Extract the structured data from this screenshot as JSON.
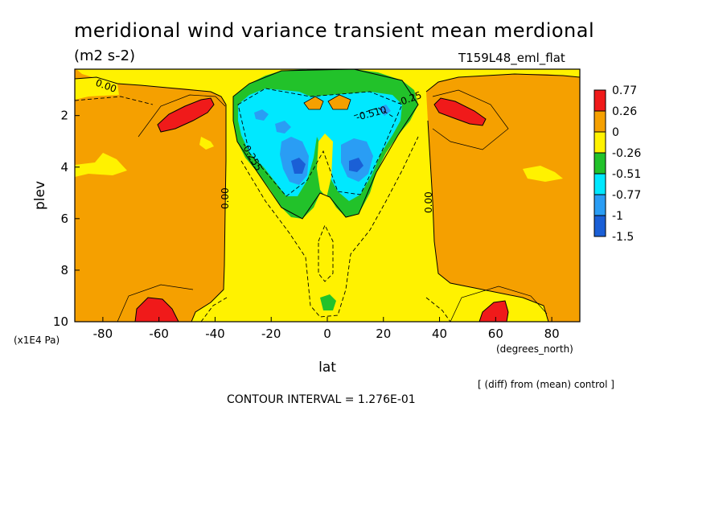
{
  "title": "meridional wind variance transient mean merdional",
  "units": "(m2 s-2)",
  "run_label": "T159L48_eml_flat",
  "diff_note": "[ (diff) from (mean) control ]",
  "contour_interval": "CONTOUR INTERVAL = 1.276E-01",
  "colors": {
    "red": "#f01a1a",
    "orange": "#f5a000",
    "yellow": "#fff200",
    "green": "#22c22a",
    "cyan": "#00e8ff",
    "blue": "#2a9df4",
    "deep_blue": "#1a5fd6"
  },
  "chart_data": {
    "type": "heatmap",
    "title": "meridional wind variance transient mean merdional",
    "xlabel": "lat",
    "xunit_label": "(degrees_north)",
    "ylabel": "plev",
    "yunit_label": "(x1E4 Pa)",
    "xlim": [
      -90,
      90
    ],
    "ylim": [
      10,
      0.2
    ],
    "x_ticks": [
      "-80",
      "-60",
      "-40",
      "-20",
      "0",
      "20",
      "40",
      "60",
      "80"
    ],
    "y_ticks": [
      "2",
      "4",
      "6",
      "8",
      "10"
    ],
    "contour_labels": [
      "0.00",
      "0.00",
      "0.00",
      "-0.255",
      "-0.510",
      "-0.25"
    ],
    "legend": {
      "placement": "right",
      "labels": [
        "0.77",
        "0.26",
        "0",
        "-0.26",
        "-0.51",
        "-0.77",
        "-1",
        "-1.5"
      ]
    }
  }
}
